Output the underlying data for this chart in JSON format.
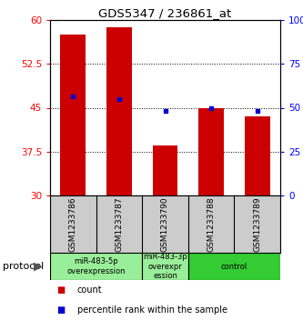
{
  "title": "GDS5347 / 236861_at",
  "samples": [
    "GSM1233786",
    "GSM1233787",
    "GSM1233790",
    "GSM1233788",
    "GSM1233789"
  ],
  "red_values": [
    57.5,
    58.7,
    38.5,
    45.0,
    43.5
  ],
  "blue_values": [
    47.0,
    46.5,
    44.5,
    45.0,
    44.5
  ],
  "ylim_left": [
    30,
    60
  ],
  "ylim_right": [
    0,
    100
  ],
  "yticks_left": [
    30,
    37.5,
    45,
    52.5,
    60
  ],
  "yticks_right": [
    0,
    25,
    50,
    75,
    100
  ],
  "ytick_labels_left": [
    "30",
    "37.5",
    "45",
    "52.5",
    "60"
  ],
  "ytick_labels_right": [
    "0",
    "25",
    "50",
    "75",
    "100%"
  ],
  "bar_color": "#cc0000",
  "marker_color": "#0000cc",
  "bar_width": 0.55,
  "base_value": 30,
  "group_light_color": "#99ee99",
  "group_dark_color": "#33cc33",
  "sample_bg_color": "#cccccc",
  "protocol_label": "protocol",
  "legend_count": "count",
  "legend_percentile": "percentile rank within the sample",
  "groups": [
    {
      "indices": [
        0,
        1
      ],
      "label": "miR-483-5p\noverexpression",
      "dark": false
    },
    {
      "indices": [
        2
      ],
      "label": "miR-483-3p\noverexpr\nession",
      "dark": false
    },
    {
      "indices": [
        3,
        4
      ],
      "label": "control",
      "dark": true
    }
  ]
}
